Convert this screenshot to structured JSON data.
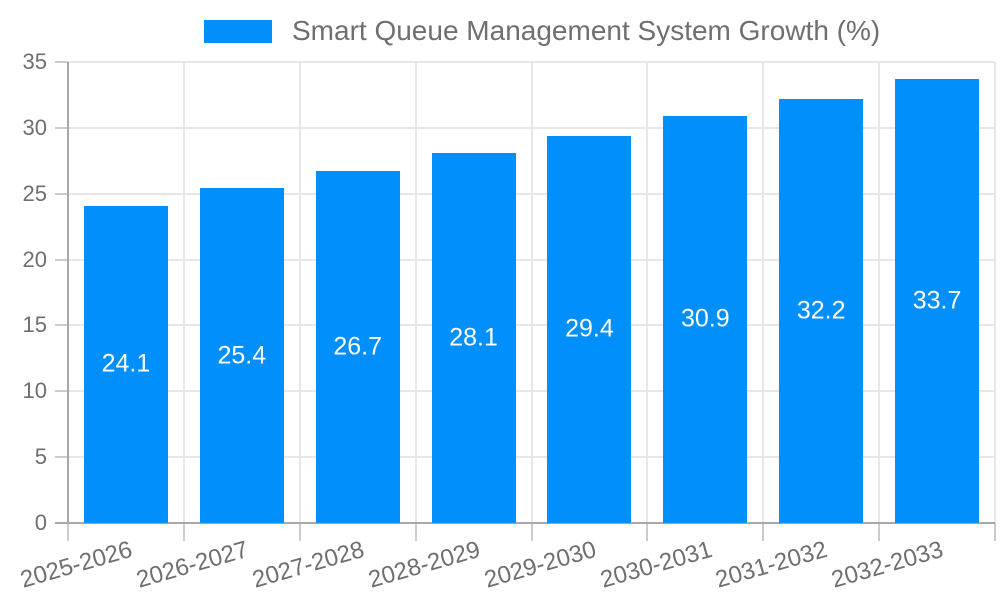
{
  "chart_data": {
    "type": "bar",
    "title": "Smart Queue Management System Growth (%)",
    "categories": [
      "2025-2026",
      "2026-2027",
      "2027-2028",
      "2028-2029",
      "2029-2030",
      "2030-2031",
      "2031-2032",
      "2032-2033"
    ],
    "values": [
      24.1,
      25.4,
      26.7,
      28.1,
      29.4,
      30.9,
      32.2,
      33.7
    ],
    "value_labels": [
      "24.1",
      "25.4",
      "26.7",
      "28.1",
      "29.4",
      "30.9",
      "32.2",
      "33.7"
    ],
    "yticks": [
      0,
      5,
      10,
      15,
      20,
      25,
      30,
      35
    ],
    "ylim": [
      0,
      35
    ],
    "xlabel": "",
    "ylabel": "",
    "grid": true,
    "legend_position": "top",
    "colors": {
      "bar": "#008FFB",
      "grid": "#e7e7e7",
      "axis": "#a8a8a8",
      "tick": "#cccccc",
      "label": "#6f6f6f",
      "value_label": "#ffffff",
      "background": "#ffffff"
    }
  }
}
